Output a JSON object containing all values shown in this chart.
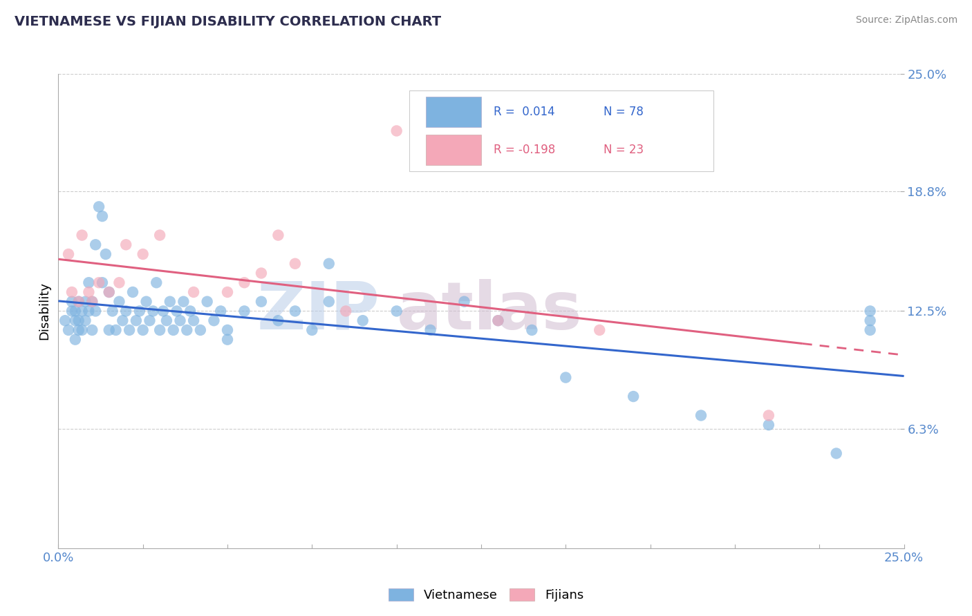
{
  "title": "VIETNAMESE VS FIJIAN DISABILITY CORRELATION CHART",
  "source": "Source: ZipAtlas.com",
  "ylabel": "Disability",
  "xmin": 0.0,
  "xmax": 0.25,
  "ymin": 0.0,
  "ymax": 0.25,
  "ytick_vals": [
    0.0,
    0.063,
    0.125,
    0.188,
    0.25
  ],
  "ytick_labels": [
    "",
    "6.3%",
    "12.5%",
    "18.8%",
    "25.0%"
  ],
  "xtick_vals": [
    0.0,
    0.025,
    0.05,
    0.075,
    0.1,
    0.125,
    0.15,
    0.175,
    0.2,
    0.225,
    0.25
  ],
  "grid_color": "#cccccc",
  "background_color": "#ffffff",
  "vietnamese_color": "#7eb3e0",
  "fijian_color": "#f4a8b8",
  "vietnamese_line_color": "#3366cc",
  "fijian_line_color": "#e06080",
  "title_color": "#2d2d4e",
  "tick_color": "#5588cc",
  "watermark_zip_color": "#b8cce8",
  "watermark_atlas_color": "#d0bcd0",
  "viet_x": [
    0.002,
    0.003,
    0.004,
    0.004,
    0.005,
    0.005,
    0.005,
    0.006,
    0.006,
    0.006,
    0.007,
    0.007,
    0.008,
    0.008,
    0.009,
    0.009,
    0.01,
    0.01,
    0.011,
    0.011,
    0.012,
    0.013,
    0.013,
    0.014,
    0.015,
    0.015,
    0.016,
    0.017,
    0.018,
    0.019,
    0.02,
    0.021,
    0.022,
    0.023,
    0.024,
    0.025,
    0.026,
    0.027,
    0.028,
    0.029,
    0.03,
    0.031,
    0.032,
    0.033,
    0.034,
    0.035,
    0.036,
    0.037,
    0.038,
    0.039,
    0.04,
    0.042,
    0.044,
    0.046,
    0.048,
    0.05,
    0.055,
    0.06,
    0.065,
    0.07,
    0.075,
    0.08,
    0.09,
    0.1,
    0.11,
    0.12,
    0.13,
    0.14,
    0.15,
    0.17,
    0.19,
    0.21,
    0.23,
    0.24,
    0.24,
    0.24,
    0.05,
    0.08
  ],
  "viet_y": [
    0.12,
    0.115,
    0.125,
    0.13,
    0.11,
    0.12,
    0.125,
    0.115,
    0.13,
    0.12,
    0.125,
    0.115,
    0.13,
    0.12,
    0.14,
    0.125,
    0.13,
    0.115,
    0.16,
    0.125,
    0.18,
    0.14,
    0.175,
    0.155,
    0.135,
    0.115,
    0.125,
    0.115,
    0.13,
    0.12,
    0.125,
    0.115,
    0.135,
    0.12,
    0.125,
    0.115,
    0.13,
    0.12,
    0.125,
    0.14,
    0.115,
    0.125,
    0.12,
    0.13,
    0.115,
    0.125,
    0.12,
    0.13,
    0.115,
    0.125,
    0.12,
    0.115,
    0.13,
    0.12,
    0.125,
    0.115,
    0.125,
    0.13,
    0.12,
    0.125,
    0.115,
    0.13,
    0.12,
    0.125,
    0.115,
    0.13,
    0.12,
    0.115,
    0.09,
    0.08,
    0.07,
    0.065,
    0.05,
    0.125,
    0.12,
    0.115,
    0.11,
    0.15
  ],
  "fiji_x": [
    0.003,
    0.004,
    0.006,
    0.007,
    0.009,
    0.01,
    0.012,
    0.015,
    0.018,
    0.02,
    0.025,
    0.03,
    0.04,
    0.05,
    0.055,
    0.06,
    0.065,
    0.07,
    0.085,
    0.1,
    0.13,
    0.16,
    0.21
  ],
  "fiji_y": [
    0.155,
    0.135,
    0.13,
    0.165,
    0.135,
    0.13,
    0.14,
    0.135,
    0.14,
    0.16,
    0.155,
    0.165,
    0.135,
    0.135,
    0.14,
    0.145,
    0.165,
    0.15,
    0.125,
    0.22,
    0.12,
    0.115,
    0.07
  ]
}
